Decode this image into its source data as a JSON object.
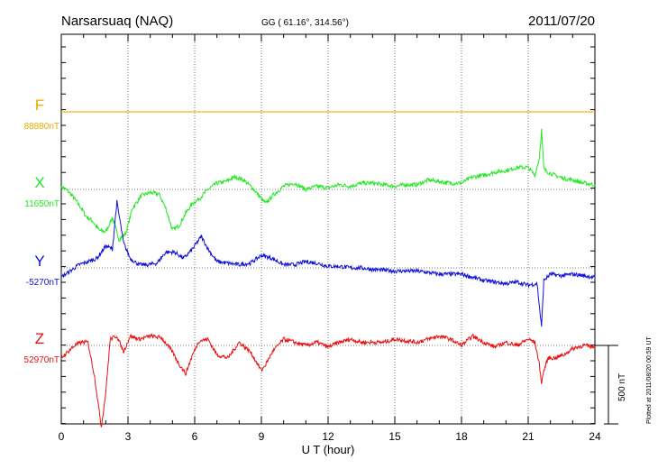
{
  "header": {
    "station": "Narsarsuaq (NAQ)",
    "coords": "GG ( 61.16°, 314.56°)",
    "date": "2011/07/20"
  },
  "footer": {
    "plotted": "Plotted at 2011/08/20 00:59 UT"
  },
  "scale_bar": {
    "label": "500 nT",
    "value_nT": 500
  },
  "chart_data": {
    "type": "line",
    "xlabel": "U T (hour)",
    "xlim": [
      0,
      24
    ],
    "xticks": [
      "0",
      "3",
      "6",
      "9",
      "12",
      "15",
      "18",
      "21",
      "24"
    ],
    "ylabel": "",
    "grid": true,
    "series": [
      {
        "name": "F",
        "baseline": "88880nT",
        "color": "#f0a800",
        "x": [
          0,
          24
        ],
        "y": [
          0,
          0
        ]
      },
      {
        "name": "X",
        "baseline": "11650nT",
        "color": "#22e822",
        "x": [
          0,
          0.3,
          0.6,
          0.9,
          1.1,
          1.4,
          1.7,
          2.0,
          2.3,
          2.6,
          2.9,
          3.2,
          3.6,
          4.0,
          4.4,
          4.7,
          5.0,
          5.3,
          5.6,
          5.9,
          6.2,
          6.6,
          7.0,
          7.4,
          7.8,
          8.2,
          8.6,
          9.0,
          9.2,
          9.5,
          10.0,
          10.5,
          11.0,
          11.5,
          12.0,
          12.5,
          13.0,
          13.5,
          14.0,
          14.5,
          15.0,
          15.5,
          16.0,
          16.5,
          17.0,
          17.5,
          18.0,
          18.5,
          19.0,
          19.5,
          20.0,
          20.5,
          21.0,
          21.3,
          21.5,
          21.6,
          21.7,
          21.9,
          22.2,
          22.6,
          23.0,
          23.5,
          24.0
        ],
        "y": [
          20,
          -10,
          -60,
          -120,
          -170,
          -200,
          -260,
          -270,
          -180,
          -320,
          -280,
          -120,
          -40,
          -20,
          -30,
          -120,
          -260,
          -230,
          -150,
          -90,
          -60,
          0,
          40,
          50,
          80,
          60,
          10,
          -60,
          -90,
          -40,
          20,
          40,
          0,
          20,
          10,
          30,
          20,
          40,
          40,
          30,
          20,
          30,
          30,
          60,
          50,
          40,
          40,
          80,
          90,
          110,
          120,
          140,
          140,
          90,
          200,
          380,
          130,
          110,
          90,
          70,
          60,
          40,
          30
        ]
      },
      {
        "name": "Y",
        "baseline": "-5270nT",
        "color": "#1010d8",
        "x": [
          0,
          0.4,
          0.8,
          1.2,
          1.6,
          2.0,
          2.3,
          2.5,
          2.8,
          3.1,
          3.5,
          3.9,
          4.3,
          4.7,
          5.1,
          5.5,
          5.9,
          6.3,
          6.6,
          7.0,
          7.5,
          8.0,
          8.5,
          9.0,
          9.5,
          10.0,
          10.5,
          11.0,
          11.5,
          12.0,
          12.5,
          13.0,
          13.5,
          14.0,
          15.0,
          16.0,
          17.0,
          18.0,
          18.5,
          19.0,
          19.5,
          20.0,
          20.5,
          21.0,
          21.4,
          21.5,
          21.6,
          21.7,
          22.0,
          22.5,
          23.0,
          23.5,
          24.0
        ],
        "y": [
          -60,
          -20,
          20,
          40,
          60,
          140,
          120,
          420,
          160,
          60,
          20,
          20,
          30,
          100,
          100,
          60,
          120,
          200,
          120,
          40,
          30,
          20,
          30,
          80,
          60,
          20,
          20,
          40,
          30,
          10,
          10,
          0,
          0,
          -10,
          -20,
          -20,
          -40,
          -40,
          -60,
          -80,
          -90,
          -100,
          -90,
          -110,
          -100,
          -240,
          -380,
          -80,
          -40,
          -50,
          -40,
          -50,
          -60
        ]
      },
      {
        "name": "Z",
        "baseline": "52970nT",
        "color": "#e81010",
        "x": [
          0,
          0.3,
          0.6,
          0.9,
          1.2,
          1.5,
          1.8,
          2.0,
          2.2,
          2.5,
          2.8,
          3.1,
          3.5,
          4.0,
          4.5,
          5.0,
          5.3,
          5.6,
          5.9,
          6.2,
          6.6,
          7.0,
          7.5,
          8.0,
          8.5,
          9.0,
          9.2,
          9.5,
          10.0,
          10.5,
          11.0,
          11.5,
          12.0,
          12.5,
          13.0,
          13.5,
          14.0,
          14.5,
          15.0,
          15.5,
          16.0,
          16.5,
          17.0,
          17.5,
          18.0,
          18.5,
          19.0,
          19.5,
          20.0,
          20.5,
          21.0,
          21.3,
          21.5,
          21.6,
          21.7,
          21.9,
          22.2,
          22.6,
          23.0,
          23.5,
          24.0
        ],
        "y": [
          -80,
          -40,
          0,
          20,
          20,
          -200,
          -520,
          -300,
          40,
          60,
          -40,
          60,
          40,
          60,
          50,
          -40,
          -120,
          -180,
          -60,
          30,
          40,
          -60,
          -80,
          20,
          -40,
          -160,
          -120,
          -40,
          40,
          20,
          0,
          20,
          -10,
          20,
          40,
          20,
          20,
          20,
          40,
          30,
          20,
          40,
          60,
          40,
          0,
          60,
          20,
          -10,
          20,
          0,
          40,
          20,
          -120,
          -240,
          -160,
          -80,
          -80,
          -60,
          -20,
          0,
          -10
        ]
      }
    ]
  }
}
